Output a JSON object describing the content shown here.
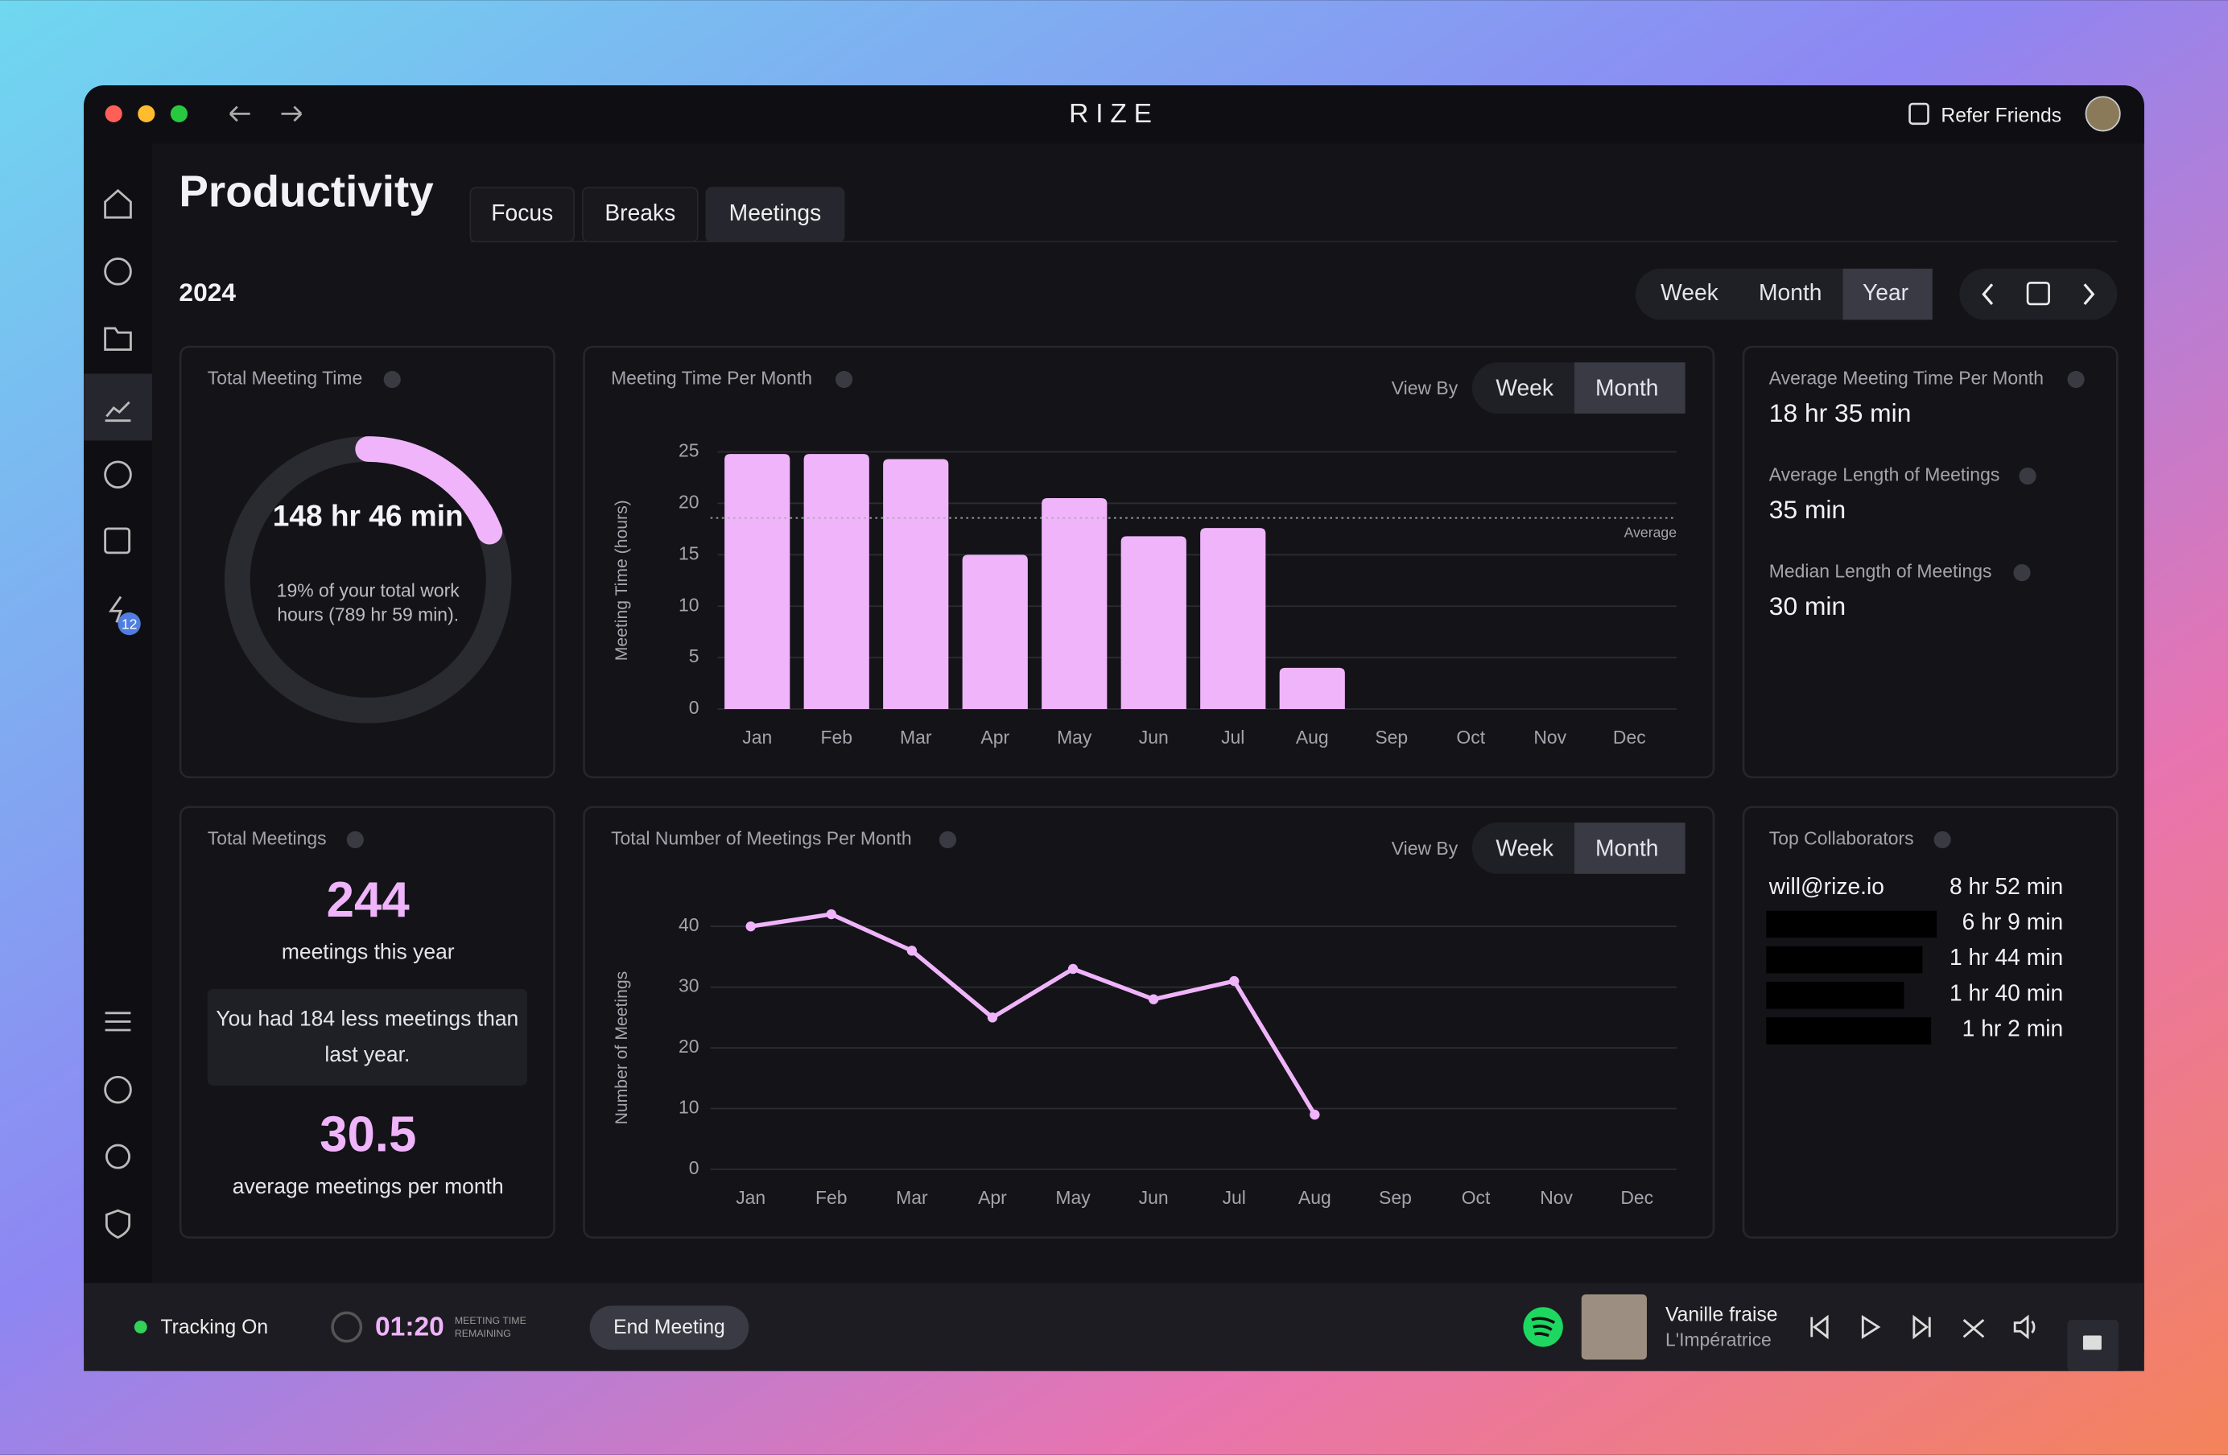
{
  "app": {
    "title": "RIZE",
    "refer": "Refer Friends",
    "badge": "12"
  },
  "page": {
    "title": "Productivity",
    "tabs": [
      "Focus",
      "Breaks",
      "Meetings"
    ],
    "year": "2024",
    "ranges": [
      "Week",
      "Month",
      "Year"
    ]
  },
  "view_by": "View By",
  "view_options": [
    "Week",
    "Month"
  ],
  "total_time": {
    "label": "Total Meeting Time",
    "value": "148 hr 46 min",
    "share": 19,
    "note": "19% of your total work hours (789 hr 59 min)."
  },
  "stats": [
    {
      "label": "Average Meeting Time Per Month",
      "value": "18 hr 35 min"
    },
    {
      "label": "Average Length of Meetings",
      "value": "35 min"
    },
    {
      "label": "Median Length of Meetings",
      "value": "30 min"
    }
  ],
  "total_meetings": {
    "label": "Total Meetings",
    "count": "244",
    "count_caption": "meetings this year",
    "compare": "You had 184 less meetings than last year.",
    "average": "30.5",
    "average_caption": "average meetings per month"
  },
  "collaborators": {
    "label": "Top Collaborators",
    "rows": [
      {
        "name": "will@rize.io",
        "time": "8 hr 52 min"
      },
      {
        "time": "6 hr 9 min"
      },
      {
        "time": "1 hr 44 min"
      },
      {
        "time": "1 hr 40 min"
      },
      {
        "time": "1 hr 2 min"
      }
    ]
  },
  "footer": {
    "tracking": "Tracking On",
    "timer": "01:20",
    "timer_caption_1": "MEETING TIME",
    "timer_caption_2": "REMAINING",
    "end": "End Meeting",
    "song": "Vanille fraise",
    "artist": "L'Impératrice"
  },
  "chart_data": [
    {
      "type": "bar",
      "title": "Meeting Time Per Month",
      "y_label": "Meeting Time (hours)",
      "color": "#f0b4fa",
      "categories": [
        "Jan",
        "Feb",
        "Mar",
        "Apr",
        "May",
        "Jun",
        "Jul",
        "Aug",
        "Sep",
        "Oct",
        "Nov",
        "Dec"
      ],
      "values": [
        24.8,
        24.8,
        24.3,
        15,
        20.5,
        16.8,
        17.6,
        4,
        null,
        null,
        null,
        null
      ],
      "ylim": [
        0,
        25
      ],
      "yticks": [
        0,
        5,
        10,
        15,
        20,
        25
      ],
      "grid": true,
      "average": 18.58,
      "average_label": "Average"
    },
    {
      "type": "line",
      "title": "Total Number of Meetings Per Month",
      "y_label": "Number of Meetings",
      "color": "#f0b4fa",
      "categories": [
        "Jan",
        "Feb",
        "Mar",
        "Apr",
        "May",
        "Jun",
        "Jul",
        "Aug",
        "Sep",
        "Oct",
        "Nov",
        "Dec"
      ],
      "values": [
        40,
        42,
        36,
        25,
        33,
        28,
        31,
        9,
        null,
        null,
        null,
        null
      ],
      "ylim": [
        0,
        40
      ],
      "yticks": [
        0,
        10,
        20,
        30,
        40
      ],
      "grid": true
    }
  ]
}
